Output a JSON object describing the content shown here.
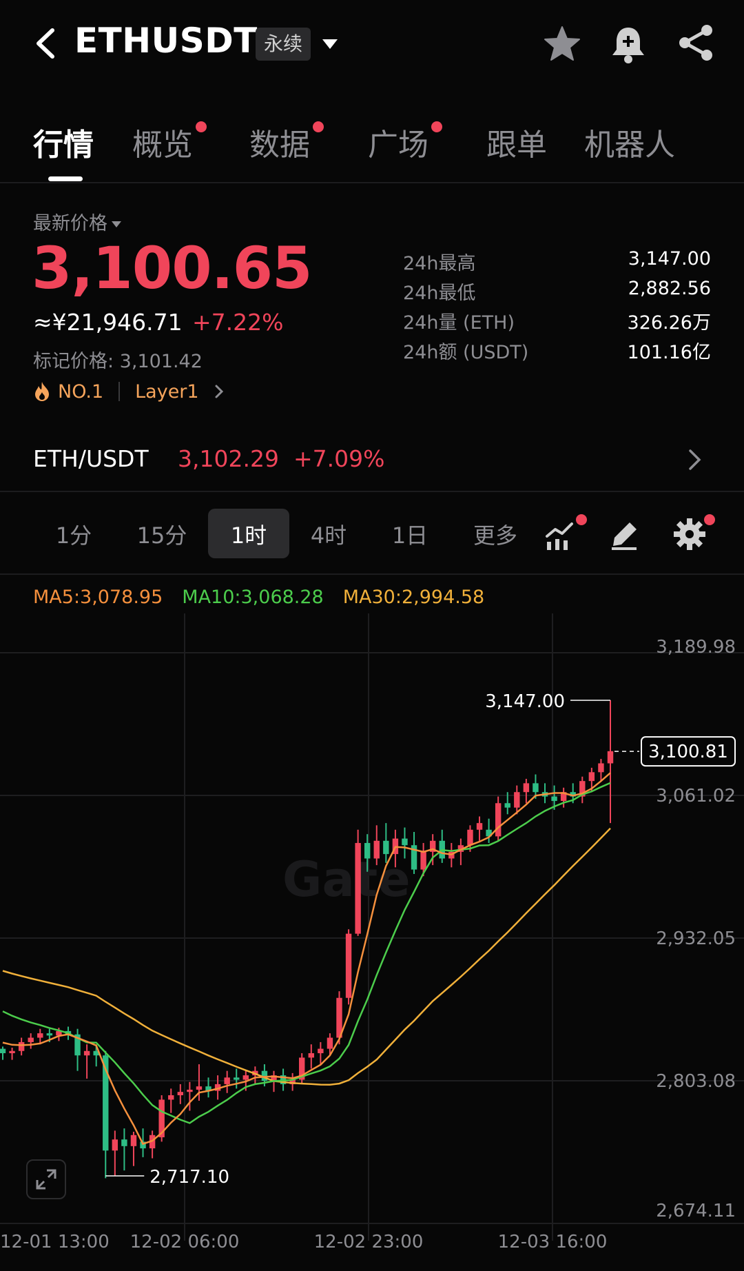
{
  "header": {
    "symbol": "ETHUSDT",
    "contract_badge": "永续",
    "icons": [
      "back-arrow-icon",
      "caret-down-icon",
      "star-icon",
      "bell-plus-icon",
      "share-icon"
    ]
  },
  "tabs": [
    {
      "label": "行情",
      "active": true,
      "dot": false
    },
    {
      "label": "概览",
      "active": false,
      "dot": true
    },
    {
      "label": "数据",
      "active": false,
      "dot": true
    },
    {
      "label": "广场",
      "active": false,
      "dot": true
    },
    {
      "label": "跟单",
      "active": false,
      "dot": false
    },
    {
      "label": "机器人",
      "active": false,
      "dot": false
    }
  ],
  "price": {
    "label": "最新价格",
    "last": "3,100.65",
    "cny": "≈¥21,946.71",
    "change": "+7.22%",
    "mark_price": "标记价格: 3,101.42",
    "rank": "NO.1",
    "sector": "Layer1"
  },
  "stats": [
    {
      "label": "24h最高",
      "value": "3,147.00"
    },
    {
      "label": "24h最低",
      "value": "2,882.56"
    },
    {
      "label": "24h量 (ETH)",
      "value": "326.26万"
    },
    {
      "label": "24h额 (USDT)",
      "value": "101.16亿"
    }
  ],
  "spot_pair": {
    "name": "ETH/USDT",
    "price": "3,102.29",
    "change": "+7.09%"
  },
  "intervals": {
    "items": [
      "1分",
      "15分",
      "1时",
      "4时",
      "1日",
      "更多"
    ],
    "active": "1时"
  },
  "ma_legend": {
    "ma5": "MA5:3,078.95",
    "ma10": "MA10:3,068.28",
    "ma30": "MA30:2,994.58"
  },
  "colors": {
    "up": "#f0455a",
    "down": "#2ebd85",
    "ma5": "#f5903d",
    "ma10": "#4ccd4c",
    "ma30": "#f0b03a",
    "grid": "#1e1e20"
  },
  "chart_data": {
    "type": "candlestick",
    "y_ticks": [
      "3,189.98",
      "3,061.02",
      "2,932.05",
      "2,803.08",
      "2,674.11"
    ],
    "ylim": [
      2674.11,
      3189.98
    ],
    "x_ticks": [
      "12-01 13:00",
      "12-02 06:00",
      "12-02 23:00",
      "12-03 16:00"
    ],
    "last_price_tag": "3,100.81",
    "high_annotation": "3,147.00",
    "low_annotation": "2,717.10",
    "high_value": 3147.0,
    "low_value": 2717.1,
    "last_value": 3100.81,
    "candles": [
      [
        2832,
        2834,
        2822,
        2828
      ],
      [
        2828,
        2833,
        2822,
        2830
      ],
      [
        2830,
        2842,
        2826,
        2838
      ],
      [
        2838,
        2846,
        2832,
        2842
      ],
      [
        2842,
        2850,
        2836,
        2846
      ],
      [
        2846,
        2850,
        2838,
        2844
      ],
      [
        2844,
        2851,
        2839,
        2848
      ],
      [
        2848,
        2852,
        2840,
        2845
      ],
      [
        2845,
        2850,
        2812,
        2826
      ],
      [
        2826,
        2836,
        2805,
        2830
      ],
      [
        2830,
        2836,
        2816,
        2826
      ],
      [
        2826,
        2830,
        2715,
        2740
      ],
      [
        2740,
        2758,
        2717,
        2750
      ],
      [
        2750,
        2760,
        2722,
        2744
      ],
      [
        2744,
        2757,
        2726,
        2754
      ],
      [
        2748,
        2760,
        2734,
        2742
      ],
      [
        2742,
        2758,
        2733,
        2754
      ],
      [
        2752,
        2790,
        2748,
        2786
      ],
      [
        2786,
        2796,
        2774,
        2790
      ],
      [
        2790,
        2800,
        2782,
        2793
      ],
      [
        2793,
        2802,
        2776,
        2795
      ],
      [
        2795,
        2818,
        2785,
        2798
      ],
      [
        2798,
        2806,
        2788,
        2794
      ],
      [
        2794,
        2808,
        2786,
        2800
      ],
      [
        2800,
        2812,
        2792,
        2806
      ],
      [
        2806,
        2814,
        2796,
        2804
      ],
      [
        2804,
        2812,
        2794,
        2808
      ],
      [
        2808,
        2816,
        2800,
        2812
      ],
      [
        2812,
        2818,
        2798,
        2803
      ],
      [
        2803,
        2812,
        2793,
        2808
      ],
      [
        2808,
        2814,
        2794,
        2800
      ],
      [
        2800,
        2810,
        2794,
        2804
      ],
      [
        2804,
        2828,
        2800,
        2824
      ],
      [
        2824,
        2836,
        2814,
        2828
      ],
      [
        2828,
        2838,
        2818,
        2832
      ],
      [
        2832,
        2846,
        2826,
        2842
      ],
      [
        2842,
        2884,
        2836,
        2878
      ],
      [
        2878,
        2940,
        2872,
        2936
      ],
      [
        2936,
        3030,
        2934,
        3018
      ],
      [
        3018,
        3026,
        2992,
        3004
      ],
      [
        3004,
        3034,
        2998,
        3020
      ],
      [
        3020,
        3036,
        3000,
        3008
      ],
      [
        3008,
        3030,
        2996,
        3022
      ],
      [
        3022,
        3032,
        3004,
        3016
      ],
      [
        3016,
        3028,
        2990,
        2994
      ],
      [
        2994,
        3018,
        2988,
        3010
      ],
      [
        3010,
        3026,
        2998,
        3020
      ],
      [
        3020,
        3030,
        3000,
        3004
      ],
      [
        3004,
        3018,
        2996,
        3010
      ],
      [
        3010,
        3022,
        2998,
        3016
      ],
      [
        3016,
        3034,
        3010,
        3030
      ],
      [
        3030,
        3042,
        3020,
        3036
      ],
      [
        3030,
        3040,
        3018,
        3024
      ],
      [
        3024,
        3060,
        3020,
        3054
      ],
      [
        3054,
        3064,
        3044,
        3050
      ],
      [
        3050,
        3070,
        3044,
        3064
      ],
      [
        3064,
        3076,
        3054,
        3072
      ],
      [
        3072,
        3080,
        3058,
        3064
      ],
      [
        3064,
        3072,
        3054,
        3060
      ],
      [
        3060,
        3070,
        3048,
        3056
      ],
      [
        3056,
        3068,
        3050,
        3064
      ],
      [
        3064,
        3072,
        3054,
        3060
      ],
      [
        3060,
        3078,
        3054,
        3074
      ],
      [
        3074,
        3086,
        3064,
        3082
      ],
      [
        3082,
        3094,
        3074,
        3090
      ],
      [
        3090,
        3147,
        3036,
        3101
      ]
    ]
  }
}
